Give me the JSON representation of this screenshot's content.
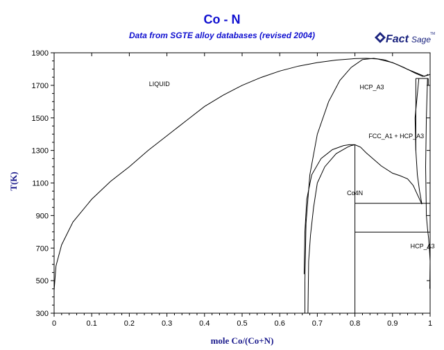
{
  "header": {
    "title": "Co - N",
    "subtitle": "Data from SGTE alloy databases (revised 2004)",
    "logo_text_bold": "Fact",
    "logo_text_light": "Sage",
    "logo_tm": "TM"
  },
  "colors": {
    "title": "#1010d0",
    "axis_label": "#1a1a8c",
    "logo": "#1a237e",
    "curve": "#000000"
  },
  "chart_data": {
    "type": "line",
    "title": "Co - N",
    "subtitle": "Data from SGTE alloy databases (revised 2004)",
    "xlabel": "mole Co/(Co+N)",
    "ylabel": "T(K)",
    "xlim": [
      0,
      1
    ],
    "ylim": [
      300,
      1900
    ],
    "xticks": [
      0,
      0.1,
      0.2,
      0.3,
      0.4,
      0.5,
      0.6,
      0.7,
      0.8,
      0.9,
      1
    ],
    "yticks": [
      300,
      500,
      700,
      900,
      1100,
      1300,
      1500,
      1700,
      1900
    ],
    "grid": false,
    "labels": [
      {
        "text": "LIQUID",
        "x": 0.28,
        "y": 1695
      },
      {
        "text": "HCP_A3",
        "x": 0.845,
        "y": 1675
      },
      {
        "text": "FCC_A1 + HCP_A3",
        "x": 0.91,
        "y": 1375
      },
      {
        "text": "Co4N",
        "x": 0.8,
        "y": 1025
      },
      {
        "text": "HCP_A3",
        "x": 0.98,
        "y": 700
      }
    ],
    "series": [
      {
        "points": [
          [
            0.0,
            440
          ],
          [
            0.005,
            590
          ],
          [
            0.02,
            720
          ],
          [
            0.05,
            860
          ],
          [
            0.1,
            1000
          ],
          [
            0.15,
            1110
          ],
          [
            0.2,
            1200
          ],
          [
            0.25,
            1300
          ],
          [
            0.3,
            1390
          ],
          [
            0.35,
            1480
          ],
          [
            0.4,
            1570
          ],
          [
            0.45,
            1640
          ],
          [
            0.5,
            1700
          ],
          [
            0.55,
            1748
          ],
          [
            0.6,
            1788
          ],
          [
            0.65,
            1818
          ],
          [
            0.7,
            1840
          ],
          [
            0.75,
            1855
          ],
          [
            0.8,
            1864
          ],
          [
            0.83,
            1866
          ],
          [
            0.86,
            1862
          ],
          [
            0.9,
            1840
          ],
          [
            0.93,
            1810
          ],
          [
            0.96,
            1775
          ],
          [
            0.98,
            1755
          ],
          [
            0.995,
            1762
          ],
          [
            1.0,
            1768
          ]
        ]
      },
      {
        "points": [
          [
            0.667,
            500
          ],
          [
            0.67,
            850
          ],
          [
            0.68,
            1150
          ],
          [
            0.7,
            1400
          ],
          [
            0.73,
            1600
          ],
          [
            0.76,
            1730
          ],
          [
            0.79,
            1810
          ],
          [
            0.82,
            1858
          ],
          [
            0.85,
            1866
          ],
          [
            0.88,
            1856
          ],
          [
            0.91,
            1830
          ],
          [
            0.94,
            1798
          ],
          [
            0.97,
            1770
          ],
          [
            0.985,
            1755
          ],
          [
            0.995,
            1768
          ]
        ]
      },
      {
        "points": [
          [
            0.665,
            540
          ],
          [
            0.667,
            800
          ],
          [
            0.672,
            1000
          ],
          [
            0.685,
            1150
          ],
          [
            0.71,
            1250
          ],
          [
            0.74,
            1305
          ],
          [
            0.77,
            1330
          ],
          [
            0.785,
            1335
          ],
          [
            0.8,
            1335
          ],
          [
            0.815,
            1320
          ],
          [
            0.83,
            1285
          ],
          [
            0.85,
            1245
          ],
          [
            0.87,
            1205
          ],
          [
            0.9,
            1160
          ],
          [
            0.92,
            1145
          ],
          [
            0.94,
            1125
          ],
          [
            0.955,
            1085
          ],
          [
            0.97,
            1010
          ],
          [
            0.978,
            970
          ]
        ]
      },
      {
        "points": [
          [
            0.7,
            1100
          ],
          [
            0.72,
            1200
          ],
          [
            0.75,
            1280
          ],
          [
            0.78,
            1320
          ],
          [
            0.79,
            1330
          ],
          [
            0.8,
            1335
          ]
        ]
      },
      {
        "points": [
          [
            0.7,
            1100
          ],
          [
            0.69,
            950
          ],
          [
            0.682,
            780
          ],
          [
            0.677,
            620
          ],
          [
            0.675,
            300
          ]
        ]
      },
      {
        "points": [
          [
            0.97,
            1740
          ],
          [
            0.96,
            1500
          ],
          [
            0.962,
            1300
          ],
          [
            0.966,
            1150
          ],
          [
            0.972,
            1050
          ],
          [
            0.978,
            970
          ]
        ]
      },
      {
        "points": [
          [
            0.993,
            1740
          ],
          [
            0.99,
            1500
          ],
          [
            0.988,
            1200
          ],
          [
            0.99,
            900
          ],
          [
            0.993,
            820
          ],
          [
            0.996,
            760
          ],
          [
            0.998,
            700
          ],
          [
            1.0,
            620
          ],
          [
            0.999,
            450
          ]
        ]
      }
    ],
    "segments": [
      [
        [
          0.667,
          300
        ],
        [
          0.667,
          500
        ]
      ],
      [
        [
          0.8,
          300
        ],
        [
          0.8,
          1335
        ]
      ],
      [
        [
          0.8,
          975
        ],
        [
          1.0,
          975
        ]
      ],
      [
        [
          0.8,
          798
        ],
        [
          1.0,
          798
        ]
      ],
      [
        [
          0.962,
          1742
        ],
        [
          0.995,
          1742
        ]
      ],
      [
        [
          0.962,
          1742
        ],
        [
          0.962,
          1300
        ]
      ],
      [
        [
          0.995,
          1742
        ],
        [
          0.995,
          1700
        ]
      ]
    ]
  }
}
